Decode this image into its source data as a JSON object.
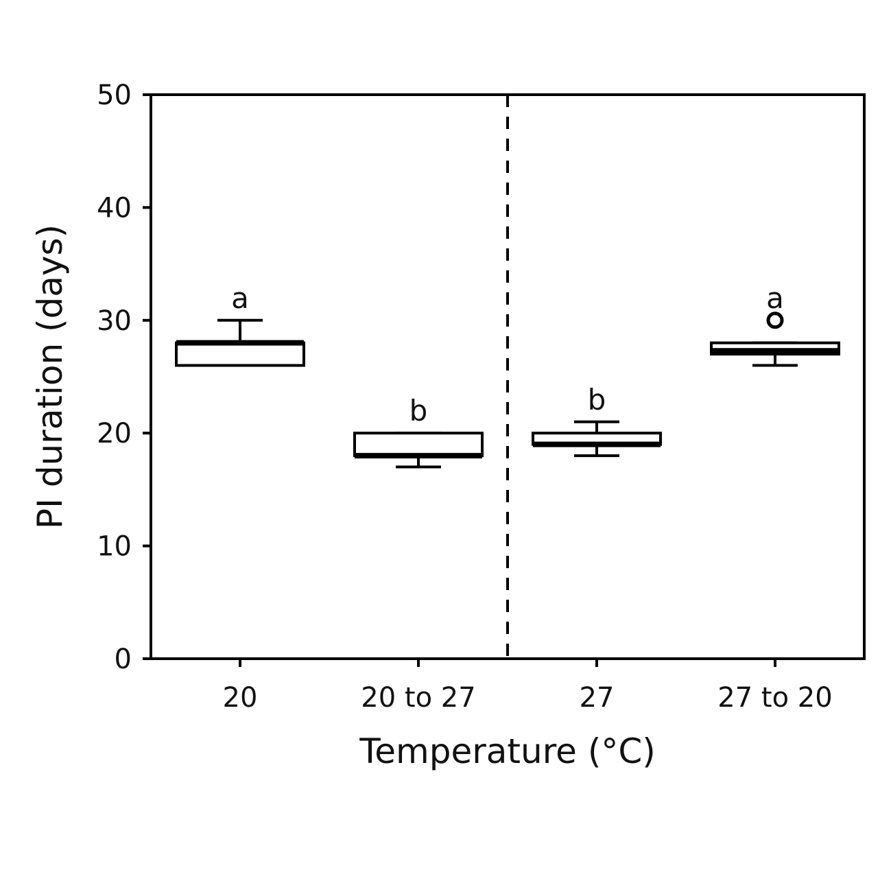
{
  "chart_data": {
    "type": "box",
    "title": "",
    "xlabel": "Temperature (°C)",
    "ylabel": "PI duration (days)",
    "ylim": [
      0,
      50
    ],
    "yticks": [
      0,
      10,
      20,
      30,
      40,
      50
    ],
    "grid": false,
    "legend": "none",
    "categories": [
      "20",
      "20 to 27",
      "27",
      "27 to 20"
    ],
    "boxes": [
      {
        "category": "20",
        "whisker_low": 26,
        "q1": 26,
        "median": 28,
        "q3": 28,
        "whisker_high": 30,
        "outliers": [],
        "letter": "a"
      },
      {
        "category": "20 to 27",
        "whisker_low": 17,
        "q1": 18,
        "median": 18,
        "q3": 20,
        "whisker_high": 20,
        "outliers": [],
        "letter": "b"
      },
      {
        "category": "27",
        "whisker_low": 18,
        "q1": 19,
        "median": 19,
        "q3": 20,
        "whisker_high": 21,
        "outliers": [],
        "letter": "b"
      },
      {
        "category": "27 to 20",
        "whisker_low": 26,
        "q1": 27,
        "median": 27.3,
        "q3": 28,
        "whisker_high": 28,
        "outliers": [
          30
        ],
        "letter": "a"
      }
    ],
    "divider_after_category": "20 to 27",
    "colors": {
      "line": "#000000",
      "box_fill": "#ffffff"
    }
  }
}
